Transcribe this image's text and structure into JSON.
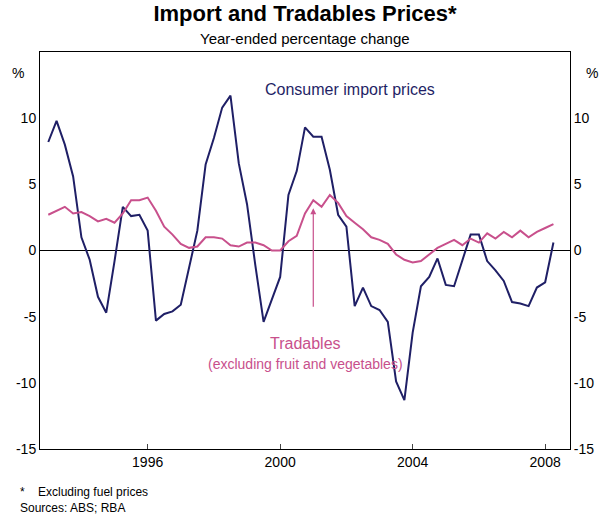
{
  "chart_data": {
    "type": "line",
    "title": "Import and Tradables Prices*",
    "subtitle": "Year-ended percentage change",
    "y_label": "%",
    "y2_label": "%",
    "x": [
      1993.0,
      1993.25,
      1993.5,
      1993.75,
      1994.0,
      1994.25,
      1994.5,
      1994.75,
      1995.0,
      1995.25,
      1995.5,
      1995.75,
      1996.0,
      1996.25,
      1996.5,
      1996.75,
      1997.0,
      1997.25,
      1997.5,
      1997.75,
      1998.0,
      1998.25,
      1998.5,
      1998.75,
      1999.0,
      1999.25,
      1999.5,
      1999.75,
      2000.0,
      2000.25,
      2000.5,
      2000.75,
      2001.0,
      2001.25,
      2001.5,
      2001.75,
      2002.0,
      2002.25,
      2002.5,
      2002.75,
      2003.0,
      2003.25,
      2003.5,
      2003.75,
      2004.0,
      2004.25,
      2004.5,
      2004.75,
      2005.0,
      2005.25,
      2005.5,
      2005.75,
      2006.0,
      2006.25,
      2006.5,
      2006.75,
      2007.0,
      2007.25,
      2007.5,
      2007.75,
      2008.0,
      2008.25
    ],
    "series": [
      {
        "name": "Consumer import prices",
        "color": "#1f1f66",
        "values": [
          8.2,
          9.8,
          8.0,
          5.6,
          1.0,
          -0.7,
          -3.5,
          -4.7,
          -0.8,
          3.3,
          2.6,
          2.7,
          1.5,
          -5.3,
          -4.8,
          -4.6,
          -4.1,
          -1.4,
          1.5,
          6.5,
          8.5,
          10.8,
          11.7,
          6.6,
          3.5,
          -1.1,
          -5.4,
          -3.7,
          -2.0,
          4.2,
          6.0,
          9.3,
          8.6,
          8.6,
          6.1,
          2.7,
          1.8,
          -4.2,
          -2.8,
          -4.2,
          -4.5,
          -5.4,
          -9.9,
          -11.3,
          -6.2,
          -2.7,
          -2.0,
          -0.6,
          -2.6,
          -2.7,
          -0.8,
          1.2,
          1.2,
          -0.8,
          -1.5,
          -2.3,
          -3.9,
          -4.0,
          -4.2,
          -2.8,
          -2.4,
          0.6
        ]
      },
      {
        "name": "Tradables",
        "name_note": "(excluding fruit and vegetables)",
        "color": "#c8508c",
        "values": [
          2.7,
          3.0,
          3.3,
          2.8,
          2.9,
          2.6,
          2.2,
          2.4,
          2.1,
          2.8,
          3.8,
          3.8,
          4.0,
          3.0,
          1.8,
          1.2,
          0.5,
          0.2,
          0.3,
          1.0,
          1.0,
          0.9,
          0.4,
          0.3,
          0.6,
          0.6,
          0.4,
          0.0,
          0.0,
          0.7,
          1.1,
          2.8,
          3.8,
          3.3,
          4.2,
          3.6,
          2.6,
          2.1,
          1.6,
          1.0,
          0.8,
          0.5,
          -0.3,
          -0.7,
          -0.9,
          -0.8,
          -0.3,
          0.2,
          0.5,
          0.8,
          0.4,
          0.9,
          0.6,
          1.3,
          0.9,
          1.4,
          1.0,
          1.5,
          1.0,
          1.4,
          1.7,
          2.0
        ]
      }
    ],
    "xlim": [
      1992.75,
      2008.75
    ],
    "xticks": [
      1996,
      2000,
      2004,
      2008
    ],
    "ylim": [
      -15,
      15
    ],
    "yticks": [
      -15,
      -10,
      -5,
      0,
      5,
      10
    ],
    "y2lim": [
      -15,
      15
    ],
    "y2ticks": [
      -15,
      -10,
      -5,
      0,
      5,
      10
    ],
    "grid": false,
    "legend": false,
    "footnote": "*    Excluding fuel prices",
    "source": "Sources: ABS; RBA"
  }
}
